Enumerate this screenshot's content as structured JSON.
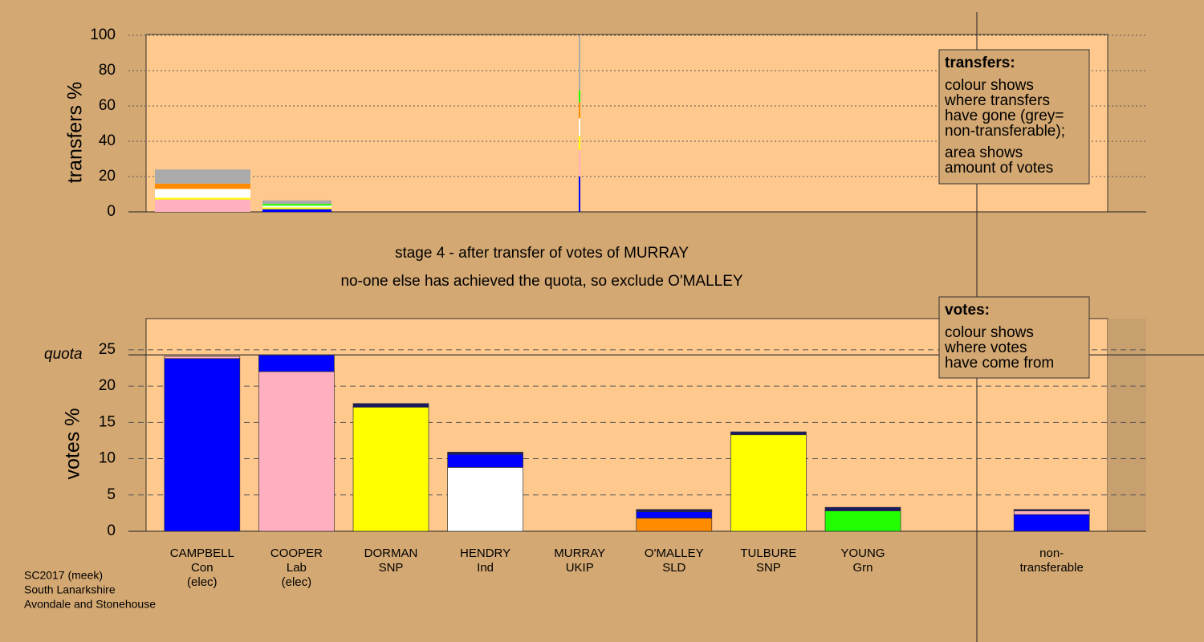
{
  "title": [
    "stage 4 - after transfer of votes of MURRAY",
    "no-one else has achieved the quota, so exclude O'MALLEY"
  ],
  "footer": [
    "SC2017 (meek)",
    "South Lanarkshire",
    "Avondale and Stonehouse"
  ],
  "chart_data": [
    {
      "type": "bar",
      "ylabel": "transfers %",
      "ylim": [
        0,
        100
      ],
      "yticks": [
        0,
        20,
        40,
        60,
        80,
        100
      ],
      "grid": true,
      "categories": [
        null,
        null,
        null
      ],
      "series": [
        {
          "color": "#0000ff",
          "values": [
            0,
            1.5,
            20
          ]
        },
        {
          "color": "#ffb0c0",
          "values": [
            7,
            0,
            15
          ]
        },
        {
          "color": "#ffff00",
          "values": [
            1,
            1,
            8
          ]
        },
        {
          "color": "#ffffff",
          "values": [
            5,
            1,
            10
          ]
        },
        {
          "color": "#ff8c00",
          "values": [
            3,
            0,
            9
          ]
        },
        {
          "color": "#22ff00",
          "values": [
            0,
            1,
            7
          ]
        },
        {
          "color": "#aaaaaa",
          "values": [
            8,
            2,
            31
          ]
        }
      ],
      "legend": {
        "title": "transfers:",
        "paragraphs": [
          [
            "colour shows",
            "where transfers",
            "have gone (grey=",
            "non-transferable);"
          ],
          [
            "area shows",
            "amount of votes"
          ]
        ]
      }
    },
    {
      "type": "bar",
      "ylabel": "votes %",
      "ylim": [
        0,
        29.3
      ],
      "yticks": [
        0,
        5,
        10,
        15,
        20,
        25
      ],
      "grid": true,
      "quota": 24.3,
      "quota_label": "quota",
      "categories": [
        [
          "CAMPBELL",
          "Con",
          "(elec)"
        ],
        [
          "COOPER",
          "Lab",
          "(elec)"
        ],
        [
          "DORMAN",
          "SNP"
        ],
        [
          "HENDRY",
          "Ind"
        ],
        [
          "MURRAY",
          "UKIP"
        ],
        [
          "O'MALLEY",
          "SLD"
        ],
        [
          "TULBURE",
          "SNP"
        ],
        [
          "YOUNG",
          "Grn"
        ],
        null,
        [
          "non-",
          "transferable"
        ]
      ],
      "layers": [
        {
          "colors": [
            "#0000ff",
            "#ffb0c0",
            "#ffff00",
            "#ffffff",
            "#888888",
            "#ff8c00",
            "#ffff00",
            "#22ff00",
            "#888888",
            "#0000ff"
          ],
          "values": [
            23.8,
            22,
            17.1,
            8.8,
            0,
            1.8,
            13.3,
            2.8,
            null,
            2.3
          ]
        },
        {
          "colors": [
            "#ffb0c0",
            "#0000ff",
            "#1a1a60",
            "#0000ff",
            "#888888",
            "#0000ff",
            "#1a1a60",
            "#1a1a60",
            "#888888",
            "#ffb0c0"
          ],
          "values": [
            0.3,
            2.3,
            0.5,
            1.8,
            0,
            0.9,
            0.4,
            0.5,
            null,
            0.5
          ]
        },
        {
          "colors": [
            "#1a1a60",
            "#1a1a60",
            "#1a1a60",
            "#1a1a60",
            "#1a1a60",
            "#1a1a60",
            "#1a1a60",
            "#1a1a60",
            "#1a1a60",
            "#1a1a60"
          ],
          "values": [
            0,
            0,
            0,
            0.3,
            0,
            0.3,
            0,
            0,
            null,
            0.2
          ]
        }
      ],
      "legend": {
        "title": "votes:",
        "paragraphs": [
          [
            "colour shows",
            "where votes",
            "have come from"
          ]
        ]
      }
    }
  ]
}
